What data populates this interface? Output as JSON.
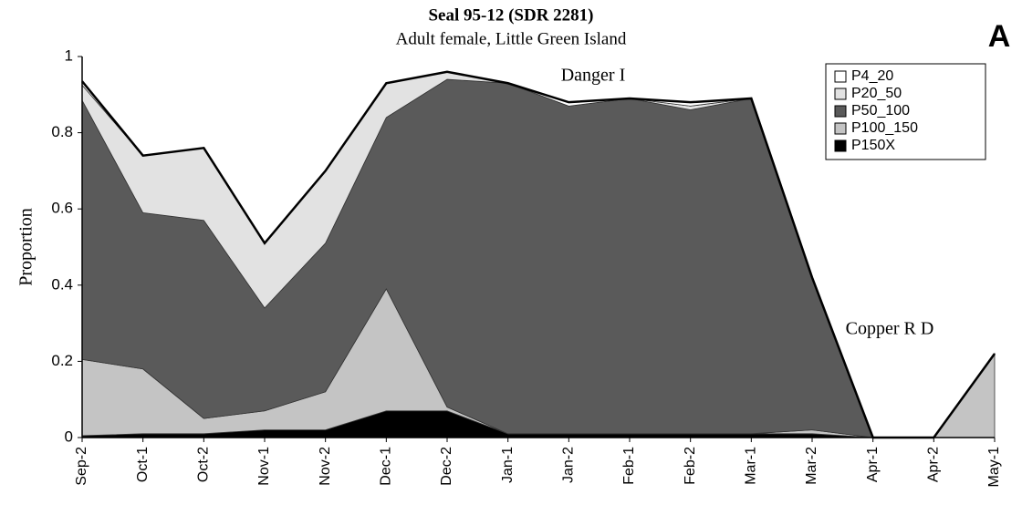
{
  "chart_data": {
    "type": "stacked_area",
    "title": "Seal 95-12  (SDR 2281)",
    "subtitle": "Adult female, Little Green Island",
    "ylabel": "Proportion",
    "annotations": [
      "Danger I",
      "Copper R D",
      "A"
    ],
    "categories": [
      "Sep-2",
      "Oct-1",
      "Oct-2",
      "Nov-1",
      "Nov-2",
      "Dec-1",
      "Dec-2",
      "Jan-1",
      "Jan-2",
      "Feb-1",
      "Feb-2",
      "Mar-1",
      "Mar-2",
      "Apr-1",
      "Apr-2",
      "May-1"
    ],
    "series": [
      {
        "name": "P150X",
        "color": "#000000",
        "values": [
          0.005,
          0.01,
          0.01,
          0.02,
          0.02,
          0.07,
          0.07,
          0.01,
          0.01,
          0.01,
          0.01,
          0.01,
          0.01,
          0,
          0,
          0
        ]
      },
      {
        "name": "P100_150",
        "color": "#c4c4c4",
        "values": [
          0.2,
          0.17,
          0.04,
          0.05,
          0.1,
          0.32,
          0.01,
          0,
          0,
          0,
          0,
          0,
          0.01,
          0,
          0,
          0.22
        ]
      },
      {
        "name": "P50_100",
        "color": "#5a5a5a",
        "values": [
          0.68,
          0.41,
          0.52,
          0.27,
          0.39,
          0.45,
          0.86,
          0.92,
          0.86,
          0.88,
          0.85,
          0.88,
          0.4,
          0,
          0,
          0
        ]
      },
      {
        "name": "P20_50",
        "color": "#e2e2e2",
        "values": [
          0.04,
          0.15,
          0.19,
          0.17,
          0.19,
          0.09,
          0.02,
          0,
          0,
          0,
          0.01,
          0,
          0,
          0,
          0,
          0
        ]
      },
      {
        "name": "P4_20",
        "color": "#ffffff",
        "values": [
          0.01,
          0,
          0,
          0,
          0,
          0,
          0,
          0,
          0.01,
          0,
          0.01,
          0,
          0,
          0,
          0,
          0
        ]
      }
    ],
    "ylim": [
      0,
      1
    ],
    "yticks": [
      0,
      0.2,
      0.4,
      0.6,
      0.8,
      1
    ],
    "legend": "upper right"
  }
}
